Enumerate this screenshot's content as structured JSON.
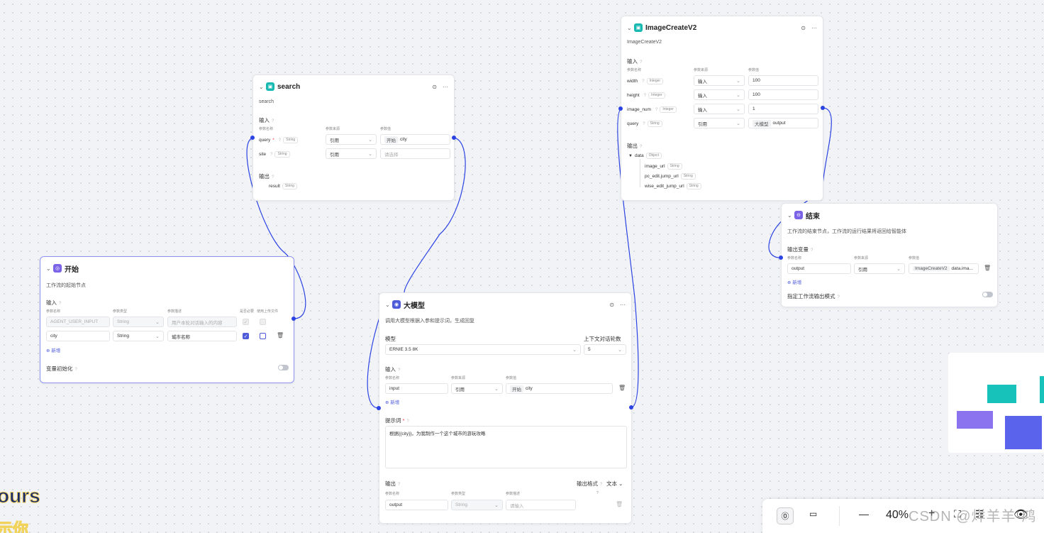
{
  "nodes": {
    "search": {
      "title": "search",
      "desc": "search",
      "input_label": "输入",
      "col_name": "参数名称",
      "col_source": "参数来源",
      "col_value": "参数值",
      "rows": [
        {
          "name": "query",
          "req": "*",
          "type": "String",
          "source": "引用",
          "chip": "开始",
          "value": "city"
        },
        {
          "name": "site",
          "type": "String",
          "source": "引用",
          "placeholder": "请选择"
        }
      ],
      "output_label": "输出",
      "outputs": [
        {
          "name": "result",
          "type": "String"
        }
      ]
    },
    "start": {
      "title": "开始",
      "desc": "工作流的起始节点",
      "input_label": "输入",
      "col_name": "参数名称",
      "col_type": "参数类型",
      "col_desc": "参数描述",
      "col_required": "是否必要",
      "col_upload": "使用上传文件",
      "rows": [
        {
          "name": "AGENT_USER_INPUT",
          "type": "String",
          "desc": "用户本轮对话输入的内容"
        },
        {
          "name": "city",
          "type": "String",
          "desc": "城市名称"
        }
      ],
      "add_label": "新增",
      "persist_label": "变量初始化"
    },
    "llm": {
      "title": "大模型",
      "desc": "调用大模型根据入参和提示词，生成回复",
      "model_label": "模型",
      "model_value": "ERNIE 3.5 8K",
      "ctx_label": "上下文对话轮数",
      "ctx_value": "5",
      "input_label": "输入",
      "col_name": "参数名称",
      "col_source": "参数来源",
      "col_value": "参数值",
      "rows": [
        {
          "name": "input",
          "source": "引用",
          "chip": "开始",
          "value": "city"
        }
      ],
      "add_label": "新增",
      "prompt_label": "提示词",
      "prompt_req": "*",
      "prompt_text": "根据{{city}}，为我制作一个这个城市的游玩攻略",
      "output_label": "输出",
      "format_label": "输出格式",
      "format_value": "文本",
      "out_col_name": "参数名称",
      "out_col_type": "参数类型",
      "out_col_desc": "参数描述",
      "outputs": [
        {
          "name": "output",
          "type": "String",
          "placeholder": "请输入"
        }
      ]
    },
    "image": {
      "title": "ImageCreateV2",
      "desc": "ImageCreateV2",
      "input_label": "输入",
      "col_name": "参数名称",
      "col_source": "参数来源",
      "col_value": "参数值",
      "rows": [
        {
          "name": "width",
          "type": "Integer",
          "source": "输入",
          "value": "100"
        },
        {
          "name": "height",
          "type": "Integer",
          "source": "输入",
          "value": "100"
        },
        {
          "name": "image_num",
          "type": "Integer",
          "source": "输入",
          "value": "1"
        },
        {
          "name": "query",
          "type": "String",
          "source": "引用",
          "chip": "大模型",
          "value": "output"
        }
      ],
      "output_label": "输出",
      "outputs": [
        {
          "name": "data",
          "type": "Object"
        },
        {
          "name": "image_url",
          "type": "String"
        },
        {
          "name": "pc_edit.jump_url",
          "type": "String"
        },
        {
          "name": "wise_edit_jump_url",
          "type": "String"
        }
      ]
    },
    "end": {
      "title": "结束",
      "desc": "工作流的结束节点，工作流的运行结果将返回给智能体",
      "output_label": "输出变量",
      "col_name": "参数名称",
      "col_source": "参数来源",
      "col_value": "参数值",
      "rows": [
        {
          "name": "output",
          "source": "引用",
          "chip": "ImageCreateV2",
          "value": "data.ima..."
        }
      ],
      "add_label": "新增",
      "stream_label": "指定工作流输出模式"
    }
  },
  "toolbar": {
    "zoom": "40%",
    "minus": "—",
    "plus": "+"
  },
  "watermark": "CSDN @烊羊羊-鸿",
  "overlay": {
    "line1": "ours",
    "line2": "示你"
  },
  "colors": {
    "accent": "#4f5cd9",
    "edge": "#2b43e3",
    "search_icon": "#17b9b1",
    "start_icon": "#7b63e8",
    "llm_icon": "#4f5cd9",
    "image_icon": "#17b9b1",
    "end_icon": "#7b63e8"
  }
}
